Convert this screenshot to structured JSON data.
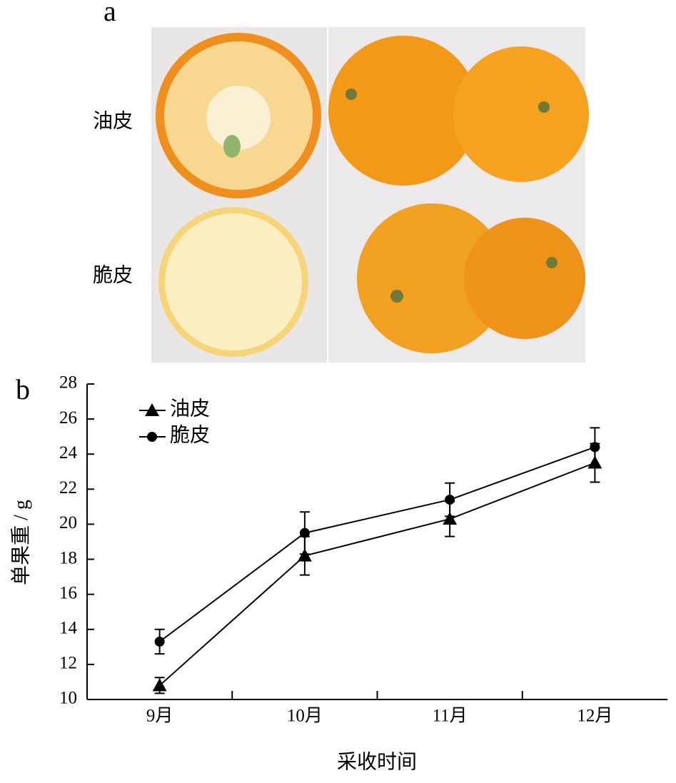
{
  "panel_a": {
    "label": "a",
    "rows": [
      "油皮",
      "脆皮"
    ]
  },
  "chart_data": {
    "type": "line",
    "panel_label": "b",
    "categories": [
      "9月",
      "10月",
      "11月",
      "12月"
    ],
    "series": [
      {
        "name": "油皮",
        "color": "#000000",
        "marker": "triangle",
        "values": [
          10.8,
          18.2,
          20.3,
          23.5
        ],
        "errors": [
          0.45,
          1.1,
          1.0,
          1.1
        ]
      },
      {
        "name": "脆皮",
        "color": "#000000",
        "marker": "circle",
        "values": [
          13.3,
          19.5,
          21.4,
          24.4
        ],
        "errors": [
          0.7,
          1.2,
          0.95,
          1.1
        ]
      }
    ],
    "ylim": [
      10,
      28
    ],
    "yticks": [
      10,
      12,
      14,
      16,
      18,
      20,
      22,
      24,
      26,
      28
    ],
    "ylabel": "单果重 / g",
    "xlabel": "采收时间",
    "legend": "upper left",
    "grid": false
  }
}
